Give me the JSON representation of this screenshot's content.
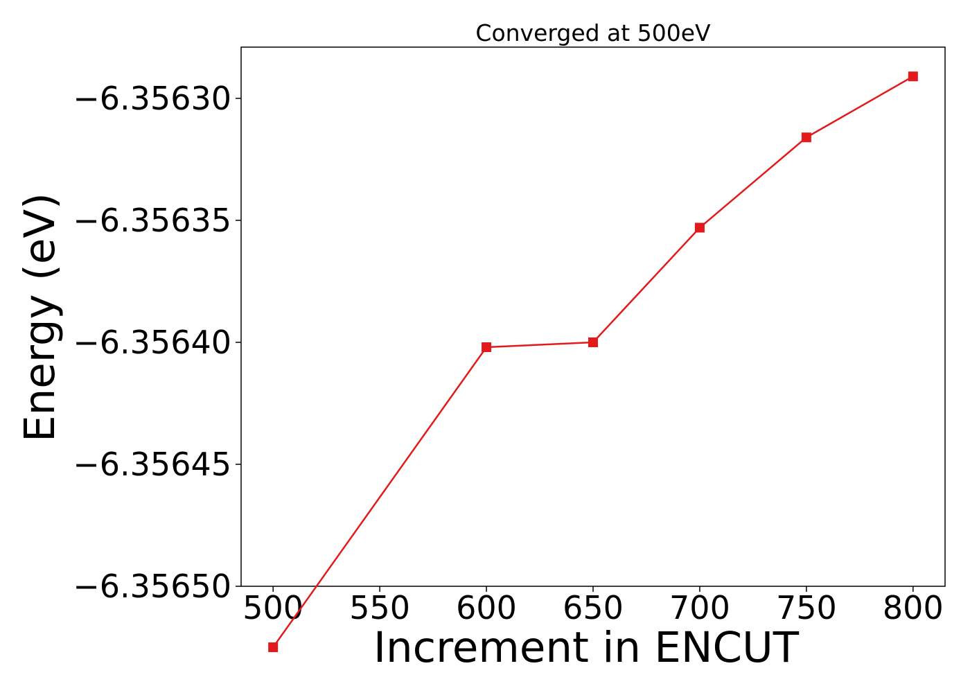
{
  "chart_data": {
    "type": "line",
    "title": "Converged at 500eV",
    "xlabel": "Increment in ENCUT",
    "ylabel": "Energy (eV)",
    "x": [
      500,
      600,
      650,
      700,
      750,
      800
    ],
    "series": [
      {
        "values": [
          -6.356525,
          -6.356402,
          -6.3564,
          -6.356353,
          -6.356316,
          -6.356291
        ],
        "color": "#e31a1c",
        "marker": "square"
      }
    ],
    "xlim": [
      485,
      815
    ],
    "ylim": [
      -6.3565,
      -6.356279
    ],
    "x_ticks": [
      500,
      550,
      600,
      650,
      700,
      750,
      800
    ],
    "x_tick_labels": [
      "500",
      "550",
      "600",
      "650",
      "700",
      "750",
      "800"
    ],
    "y_ticks": [
      -6.3565,
      -6.35645,
      -6.3564,
      -6.35635,
      -6.3563
    ],
    "y_tick_labels": [
      "−6.35650",
      "−6.35645",
      "−6.35640",
      "−6.35635",
      "−6.35630"
    ],
    "grid": false,
    "legend": "none"
  }
}
